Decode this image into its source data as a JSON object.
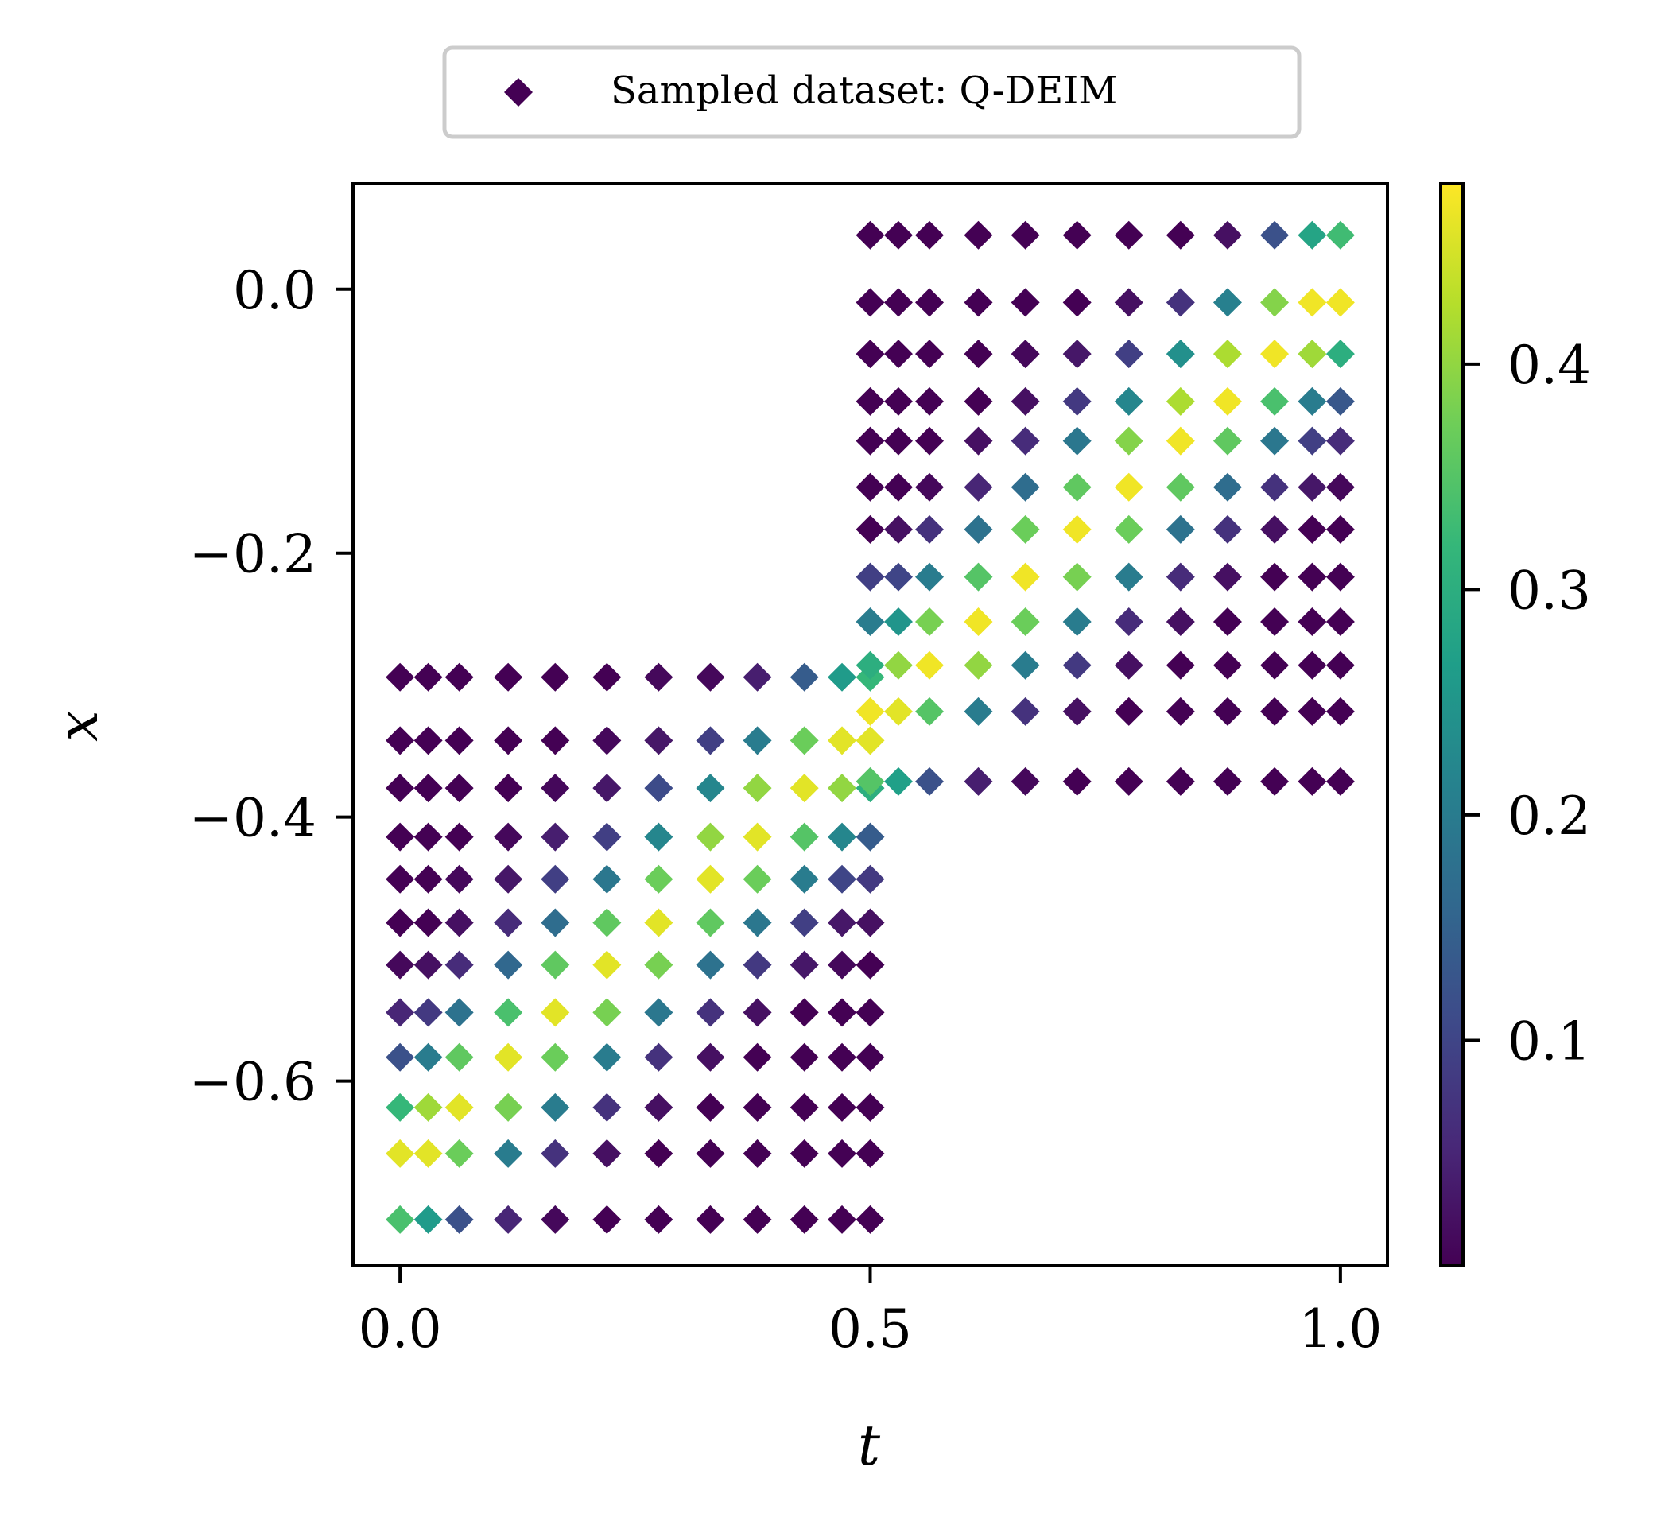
{
  "chart_data": {
    "type": "scatter",
    "title": "",
    "xlabel": "t",
    "ylabel": "x",
    "xlim": [
      -0.05,
      1.05
    ],
    "ylim": [
      -0.74,
      0.08
    ],
    "xticks": [
      0.0,
      0.5,
      1.0
    ],
    "xtick_labels": [
      "0.0",
      "0.5",
      "1.0"
    ],
    "yticks": [
      0.0,
      -0.2,
      -0.4,
      -0.6
    ],
    "ytick_labels": [
      "0.0",
      "−0.2",
      "−0.4",
      "−0.6"
    ],
    "grid": false,
    "legend": {
      "position": "top-center",
      "marker": "diamond",
      "label": "Sampled dataset: Q-DEIM"
    },
    "colorbar": {
      "colormap": "viridis",
      "range": [
        0.0,
        0.48
      ],
      "ticks": [
        0.1,
        0.2,
        0.3,
        0.4
      ],
      "tick_labels": [
        "0.1",
        "0.2",
        "0.3",
        "0.4"
      ],
      "colors": [
        "#440154",
        "#482878",
        "#3e4989",
        "#31688e",
        "#26828e",
        "#1f9e89",
        "#35b779",
        "#6ece58",
        "#b5de2b",
        "#fde725"
      ]
    },
    "series": [
      {
        "marker": "diamond",
        "t_left": [
          0.0,
          0.03,
          0.063,
          0.115,
          0.165,
          0.22,
          0.275,
          0.33,
          0.38,
          0.43,
          0.47,
          0.5
        ],
        "t_right": [
          0.5,
          0.53,
          0.563,
          0.615,
          0.665,
          0.72,
          0.775,
          0.83,
          0.88,
          0.93,
          0.97,
          1.0
        ],
        "x_left": [
          -0.294,
          -0.342,
          -0.378,
          -0.415,
          -0.447,
          -0.48,
          -0.512,
          -0.548,
          -0.582,
          -0.62,
          -0.655,
          -0.705
        ],
        "x_right": [
          0.041,
          -0.01,
          -0.049,
          -0.085,
          -0.115,
          -0.15,
          -0.182,
          -0.218,
          -0.252,
          -0.285,
          -0.32,
          -0.373
        ],
        "values_left": [
          [
            0.0,
            0.0,
            0.0,
            0.0,
            0.0,
            0.0,
            0.01,
            0.01,
            0.04,
            0.14,
            0.26,
            0.32
          ],
          [
            0.0,
            0.0,
            0.0,
            0.0,
            0.0,
            0.01,
            0.03,
            0.09,
            0.2,
            0.37,
            0.46,
            0.46
          ],
          [
            0.0,
            0.0,
            0.0,
            0.0,
            0.01,
            0.03,
            0.11,
            0.22,
            0.4,
            0.46,
            0.4,
            0.3
          ],
          [
            0.0,
            0.0,
            0.0,
            0.01,
            0.04,
            0.09,
            0.22,
            0.4,
            0.46,
            0.35,
            0.22,
            0.14
          ],
          [
            0.0,
            0.0,
            0.01,
            0.03,
            0.09,
            0.19,
            0.37,
            0.46,
            0.37,
            0.2,
            0.1,
            0.08
          ],
          [
            0.0,
            0.0,
            0.02,
            0.06,
            0.17,
            0.36,
            0.46,
            0.36,
            0.19,
            0.09,
            0.03,
            0.02
          ],
          [
            0.01,
            0.02,
            0.06,
            0.16,
            0.36,
            0.46,
            0.38,
            0.18,
            0.08,
            0.03,
            0.01,
            0.0
          ],
          [
            0.05,
            0.08,
            0.18,
            0.34,
            0.46,
            0.38,
            0.19,
            0.07,
            0.02,
            0.0,
            0.0,
            0.0
          ],
          [
            0.12,
            0.2,
            0.36,
            0.46,
            0.37,
            0.2,
            0.07,
            0.02,
            0.0,
            0.0,
            0.0,
            0.0
          ],
          [
            0.32,
            0.41,
            0.46,
            0.38,
            0.2,
            0.07,
            0.02,
            0.0,
            0.0,
            0.0,
            0.0,
            0.0
          ],
          [
            0.46,
            0.46,
            0.37,
            0.2,
            0.07,
            0.02,
            0.0,
            0.0,
            0.0,
            0.0,
            0.0,
            0.0
          ],
          [
            0.34,
            0.26,
            0.12,
            0.05,
            0.01,
            0.0,
            0.0,
            0.0,
            0.0,
            0.0,
            0.0,
            0.0
          ]
        ],
        "values_right": [
          [
            0.0,
            0.0,
            0.0,
            0.0,
            0.0,
            0.0,
            0.0,
            0.0,
            0.02,
            0.12,
            0.28,
            0.33
          ],
          [
            0.0,
            0.0,
            0.0,
            0.0,
            0.0,
            0.0,
            0.02,
            0.07,
            0.21,
            0.39,
            0.47,
            0.47
          ],
          [
            0.0,
            0.0,
            0.0,
            0.0,
            0.01,
            0.03,
            0.09,
            0.24,
            0.42,
            0.47,
            0.41,
            0.3
          ],
          [
            0.0,
            0.0,
            0.0,
            0.0,
            0.02,
            0.08,
            0.22,
            0.42,
            0.47,
            0.34,
            0.2,
            0.13
          ],
          [
            0.0,
            0.0,
            0.0,
            0.02,
            0.06,
            0.19,
            0.39,
            0.47,
            0.36,
            0.19,
            0.09,
            0.06
          ],
          [
            0.0,
            0.0,
            0.01,
            0.05,
            0.17,
            0.36,
            0.47,
            0.36,
            0.17,
            0.07,
            0.03,
            0.01
          ],
          [
            0.0,
            0.02,
            0.07,
            0.18,
            0.37,
            0.47,
            0.37,
            0.18,
            0.07,
            0.02,
            0.0,
            0.0
          ],
          [
            0.09,
            0.1,
            0.2,
            0.35,
            0.47,
            0.38,
            0.2,
            0.06,
            0.02,
            0.0,
            0.0,
            0.0
          ],
          [
            0.2,
            0.25,
            0.38,
            0.47,
            0.37,
            0.2,
            0.06,
            0.02,
            0.0,
            0.0,
            0.0,
            0.0
          ],
          [
            0.3,
            0.4,
            0.47,
            0.4,
            0.2,
            0.08,
            0.02,
            0.0,
            0.0,
            0.0,
            0.0,
            0.0
          ],
          [
            0.47,
            0.46,
            0.35,
            0.2,
            0.07,
            0.02,
            0.0,
            0.0,
            0.0,
            0.0,
            0.0,
            0.0
          ],
          [
            0.35,
            0.27,
            0.12,
            0.04,
            0.01,
            0.0,
            0.0,
            0.0,
            0.0,
            0.0,
            0.0,
            0.0
          ]
        ]
      }
    ]
  }
}
